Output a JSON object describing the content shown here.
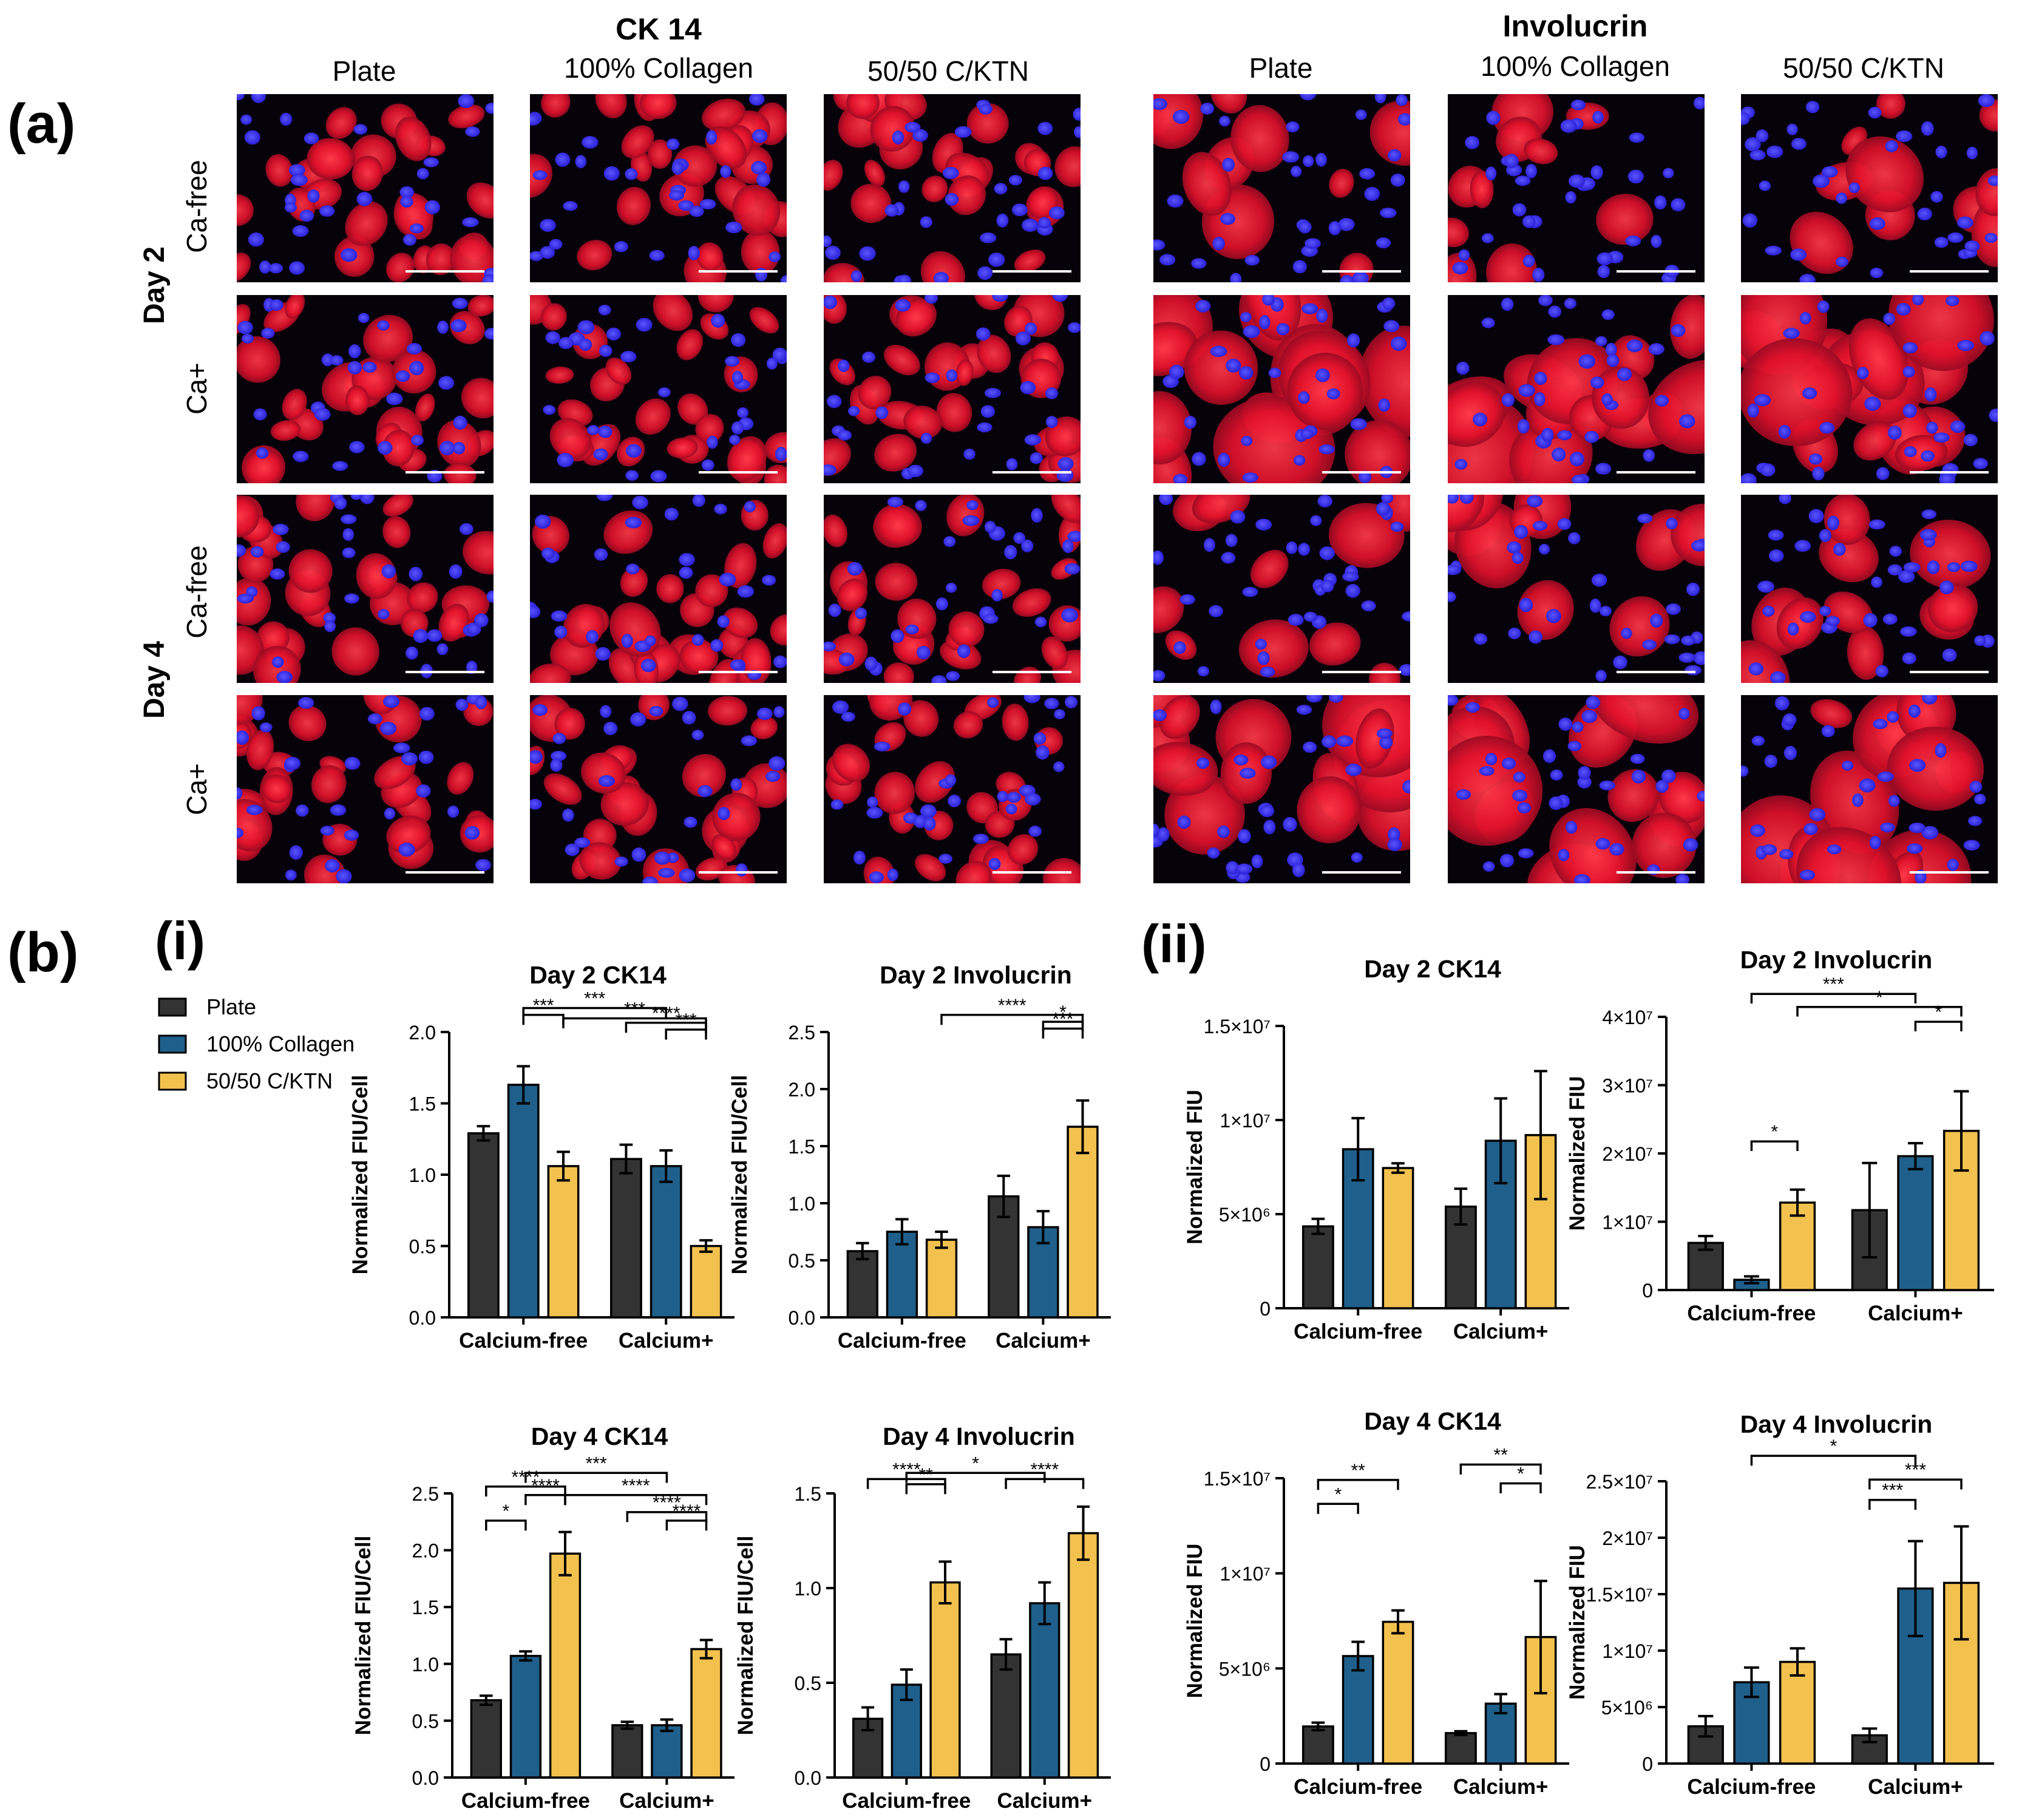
{
  "panel_a": {
    "label": "(a)",
    "groups": [
      {
        "title": "CK 14",
        "columns": [
          "Plate",
          "100% Collagen",
          "50/50 C/KTN"
        ]
      },
      {
        "title": "Involucrin",
        "columns": [
          "Plate",
          "100% Collagen",
          "50/50 C/KTN"
        ]
      }
    ],
    "days": [
      "Day 2",
      "Day 4"
    ],
    "conditions": [
      "Ca-free",
      "Ca+",
      "Ca-free",
      "Ca+"
    ],
    "colors": {
      "stain": "#e0102a",
      "nucleus": "#2a1fd6",
      "background": "#06020a"
    }
  },
  "panel_b": {
    "label": "(b)",
    "sub_i": "(i)",
    "sub_ii": "(ii)",
    "legend": [
      {
        "label": "Plate",
        "color": "#333333"
      },
      {
        "label": "100% Collagen",
        "color": "#1f5f8b"
      },
      {
        "label": "50/50 C/KTN",
        "color": "#f2c14e"
      }
    ]
  },
  "chart_data": [
    {
      "type": "bar",
      "title": "Day 2 CK14",
      "ylabel": "Normalized FIU/Cell",
      "xlabel": "",
      "categories": [
        "Calcium-free",
        "Calcium+"
      ],
      "ylim": [
        0,
        2.0
      ],
      "yticks": [
        0,
        0.5,
        1.0,
        1.5,
        2.0
      ],
      "ytick_labels": [
        "0.0",
        "0.5",
        "1.0",
        "1.5",
        "2.0"
      ],
      "series": [
        {
          "name": "Plate",
          "values": [
            1.29,
            1.11
          ],
          "errors": [
            0.05,
            0.1
          ]
        },
        {
          "name": "100% Collagen",
          "values": [
            1.63,
            1.06
          ],
          "errors": [
            0.13,
            0.11
          ]
        },
        {
          "name": "50/50 C/KTN",
          "values": [
            1.06,
            0.5
          ],
          "errors": [
            0.1,
            0.04
          ]
        }
      ],
      "sig": [
        {
          "a": [
            0,
            1
          ],
          "b": [
            1,
            1
          ],
          "label": "***",
          "level": 0.2
        },
        {
          "a": [
            0,
            1
          ],
          "b": [
            0,
            2
          ],
          "label": "***",
          "level": 0.0
        },
        {
          "a": [
            0,
            2
          ],
          "b": [
            1,
            2
          ],
          "label": "***",
          "level": -0.1
        },
        {
          "a": [
            1,
            0
          ],
          "b": [
            1,
            2
          ],
          "label": "****",
          "level": -0.23
        },
        {
          "a": [
            1,
            1
          ],
          "b": [
            1,
            2
          ],
          "label": "***",
          "level": -0.43
        }
      ]
    },
    {
      "type": "bar",
      "title": "Day 2 Involucrin",
      "ylabel": "Normalized FIU/Cell",
      "xlabel": "",
      "categories": [
        "Calcium-free",
        "Calcium+"
      ],
      "ylim": [
        0,
        2.5
      ],
      "yticks": [
        0,
        0.5,
        1.0,
        1.5,
        2.0,
        2.5
      ],
      "ytick_labels": [
        "0.0",
        "0.5",
        "1.0",
        "1.5",
        "2.0",
        "2.5"
      ],
      "series": [
        {
          "name": "Plate",
          "values": [
            0.58,
            1.06
          ],
          "errors": [
            0.07,
            0.18
          ]
        },
        {
          "name": "100% Collagen",
          "values": [
            0.75,
            0.79
          ],
          "errors": [
            0.11,
            0.14
          ]
        },
        {
          "name": "50/50 C/KTN",
          "values": [
            0.68,
            1.67
          ],
          "errors": [
            0.07,
            0.23
          ]
        }
      ],
      "sig": [
        {
          "a": [
            0,
            2
          ],
          "b": [
            1,
            2
          ],
          "label": "****",
          "level": 0.0
        },
        {
          "a": [
            1,
            1
          ],
          "b": [
            1,
            2
          ],
          "label": "*",
          "level": -0.2
        },
        {
          "a": [
            1,
            1
          ],
          "b": [
            1,
            2
          ],
          "label": "***",
          "level": -0.4
        }
      ]
    },
    {
      "type": "bar",
      "title": "Day 4 CK14",
      "ylabel": "Normalized FIU/Cell",
      "xlabel": "",
      "categories": [
        "Calcium-free",
        "Calcium+"
      ],
      "ylim": [
        0,
        2.5
      ],
      "yticks": [
        0,
        0.5,
        1.0,
        1.5,
        2.0,
        2.5
      ],
      "ytick_labels": [
        "0.0",
        "0.5",
        "1.0",
        "1.5",
        "2.0",
        "2.5"
      ],
      "series": [
        {
          "name": "Plate",
          "values": [
            0.68,
            0.46
          ],
          "errors": [
            0.04,
            0.03
          ]
        },
        {
          "name": "100% Collagen",
          "values": [
            1.07,
            0.46
          ],
          "errors": [
            0.04,
            0.05
          ]
        },
        {
          "name": "50/50 C/KTN",
          "values": [
            1.97,
            1.13
          ],
          "errors": [
            0.19,
            0.08
          ]
        }
      ],
      "sig": [
        {
          "a": [
            0,
            1
          ],
          "b": [
            1,
            1
          ],
          "label": "***",
          "level": 0.1
        },
        {
          "a": [
            0,
            0
          ],
          "b": [
            0,
            2
          ],
          "label": "****",
          "level": -0.3
        },
        {
          "a": [
            0,
            1
          ],
          "b": [
            0,
            2
          ],
          "label": "****",
          "level": -0.55
        },
        {
          "a": [
            0,
            2
          ],
          "b": [
            1,
            2
          ],
          "label": "****",
          "level": -0.55
        },
        {
          "a": [
            1,
            0
          ],
          "b": [
            1,
            2
          ],
          "label": "****",
          "level": -1.05
        },
        {
          "a": [
            1,
            1
          ],
          "b": [
            1,
            2
          ],
          "label": "****",
          "level": -1.3
        },
        {
          "a": [
            0,
            0
          ],
          "b": [
            0,
            1
          ],
          "label": "*",
          "level": -1.3
        }
      ]
    },
    {
      "type": "bar",
      "title": "Day 4 Involucrin",
      "ylabel": "Normalized FIU/Cell",
      "xlabel": "",
      "categories": [
        "Calcium-free",
        "Calcium+"
      ],
      "ylim": [
        0,
        1.5
      ],
      "yticks": [
        0,
        0.5,
        1.0,
        1.5
      ],
      "ytick_labels": [
        "0.0",
        "0.5",
        "1.0",
        "1.5"
      ],
      "series": [
        {
          "name": "Plate",
          "values": [
            0.31,
            0.65
          ],
          "errors": [
            0.06,
            0.08
          ]
        },
        {
          "name": "100% Collagen",
          "values": [
            0.49,
            0.92
          ],
          "errors": [
            0.08,
            0.11
          ]
        },
        {
          "name": "50/50 C/KTN",
          "values": [
            1.03,
            1.29
          ],
          "errors": [
            0.11,
            0.14
          ]
        }
      ],
      "sig": [
        {
          "a": [
            0,
            1
          ],
          "b": [
            1,
            1
          ],
          "label": "*",
          "level": 0.1
        },
        {
          "a": [
            0,
            0
          ],
          "b": [
            0,
            2
          ],
          "label": "****",
          "level": -0.08
        },
        {
          "a": [
            1,
            0
          ],
          "b": [
            1,
            2
          ],
          "label": "****",
          "level": -0.08
        },
        {
          "a": [
            0,
            1
          ],
          "b": [
            0,
            2
          ],
          "label": "**",
          "level": -0.23
        }
      ]
    },
    {
      "type": "bar",
      "title": "Day 2 CK14",
      "ylabel": "Normalized FIU",
      "xlabel": "",
      "categories": [
        "Calcium-free",
        "Calcium+"
      ],
      "ylim": [
        0,
        15000000
      ],
      "yticks": [
        0,
        5000000,
        10000000,
        15000000
      ],
      "ytick_labels": [
        "0",
        "5×10⁶",
        "1×10⁷",
        "1.5×10⁷"
      ],
      "series": [
        {
          "name": "Plate",
          "values": [
            4350000,
            5400000
          ],
          "errors": [
            400000,
            950000
          ]
        },
        {
          "name": "100% Collagen",
          "values": [
            8450000,
            8900000
          ],
          "errors": [
            1650000,
            2250000
          ]
        },
        {
          "name": "50/50 C/KTN",
          "values": [
            7450000,
            9200000
          ],
          "errors": [
            250000,
            3400000
          ]
        }
      ],
      "sig": []
    },
    {
      "type": "bar",
      "title": "Day 2 Involucrin",
      "ylabel": "Normalized FIU",
      "xlabel": "",
      "categories": [
        "Calcium-free",
        "Calcium+"
      ],
      "ylim": [
        0,
        40000000
      ],
      "yticks": [
        0,
        10000000,
        20000000,
        30000000,
        40000000
      ],
      "ytick_labels": [
        "0",
        "1×10⁷",
        "2×10⁷",
        "3×10⁷",
        "4×10⁷"
      ],
      "series": [
        {
          "name": "Plate",
          "values": [
            6900000,
            11700000
          ],
          "errors": [
            1000000,
            6900000
          ]
        },
        {
          "name": "100% Collagen",
          "values": [
            1500000,
            19600000
          ],
          "errors": [
            500000,
            1900000
          ]
        },
        {
          "name": "50/50 C/KTN",
          "values": [
            12800000,
            23300000
          ],
          "errors": [
            1900000,
            5800000
          ]
        }
      ],
      "sig": [
        {
          "a": [
            0,
            1
          ],
          "b": [
            1,
            1
          ],
          "label": "***",
          "level": 0.2
        },
        {
          "a": [
            0,
            2
          ],
          "b": [
            1,
            2
          ],
          "label": "*",
          "level": -0.2
        },
        {
          "a": [
            1,
            1
          ],
          "b": [
            1,
            2
          ],
          "label": "*",
          "level": -0.65
        },
        {
          "a": [
            0,
            1
          ],
          "b": [
            0,
            2
          ],
          "label": "*",
          "level": -4.3
        }
      ]
    },
    {
      "type": "bar",
      "title": "Day 4 CK14",
      "ylabel": "Normalized FIU",
      "xlabel": "",
      "categories": [
        "Calcium-free",
        "Calcium+"
      ],
      "ylim": [
        0,
        15000000
      ],
      "yticks": [
        0,
        5000000,
        10000000,
        15000000
      ],
      "ytick_labels": [
        "0",
        "5×10⁶",
        "1×10⁷",
        "1.5×10⁷"
      ],
      "series": [
        {
          "name": "Plate",
          "values": [
            1950000,
            1600000
          ],
          "errors": [
            200000,
            100000
          ]
        },
        {
          "name": "100% Collagen",
          "values": [
            5650000,
            3150000
          ],
          "errors": [
            750000,
            500000
          ]
        },
        {
          "name": "50/50 C/KTN",
          "values": [
            7450000,
            6650000
          ],
          "errors": [
            600000,
            2950000
          ]
        }
      ],
      "sig": [
        {
          "a": [
            0,
            0
          ],
          "b": [
            0,
            2
          ],
          "label": "**",
          "level": -0.55
        },
        {
          "a": [
            0,
            0
          ],
          "b": [
            0,
            1
          ],
          "label": "*",
          "level": -1.25
        },
        {
          "a": [
            1,
            0
          ],
          "b": [
            1,
            2
          ],
          "label": "**",
          "level": -0.1
        },
        {
          "a": [
            1,
            1
          ],
          "b": [
            1,
            2
          ],
          "label": "*",
          "level": -0.65
        }
      ]
    },
    {
      "type": "bar",
      "title": "Day 4 Involucrin",
      "ylabel": "Normalized FIU",
      "xlabel": "",
      "categories": [
        "Calcium-free",
        "Calcium+"
      ],
      "ylim": [
        0,
        25000000
      ],
      "yticks": [
        0,
        5000000,
        10000000,
        15000000,
        20000000,
        25000000
      ],
      "ytick_labels": [
        "0",
        "5×10⁶",
        "1×10⁷",
        "1.5×10⁷",
        "2×10⁷",
        "2.5×10⁷"
      ],
      "series": [
        {
          "name": "Plate",
          "values": [
            3300000,
            2500000
          ],
          "errors": [
            900000,
            600000
          ]
        },
        {
          "name": "100% Collagen",
          "values": [
            7200000,
            15500000
          ],
          "errors": [
            1300000,
            4200000
          ]
        },
        {
          "name": "50/50 C/KTN",
          "values": [
            9000000,
            16000000
          ],
          "errors": [
            1200000,
            5000000
          ]
        }
      ],
      "sig": [
        {
          "a": [
            0,
            1
          ],
          "b": [
            1,
            1
          ],
          "label": "*",
          "level": 0.25
        },
        {
          "a": [
            1,
            0
          ],
          "b": [
            1,
            2
          ],
          "label": "***",
          "level": -0.45
        },
        {
          "a": [
            1,
            0
          ],
          "b": [
            1,
            1
          ],
          "label": "***",
          "level": -1.05
        }
      ]
    }
  ]
}
